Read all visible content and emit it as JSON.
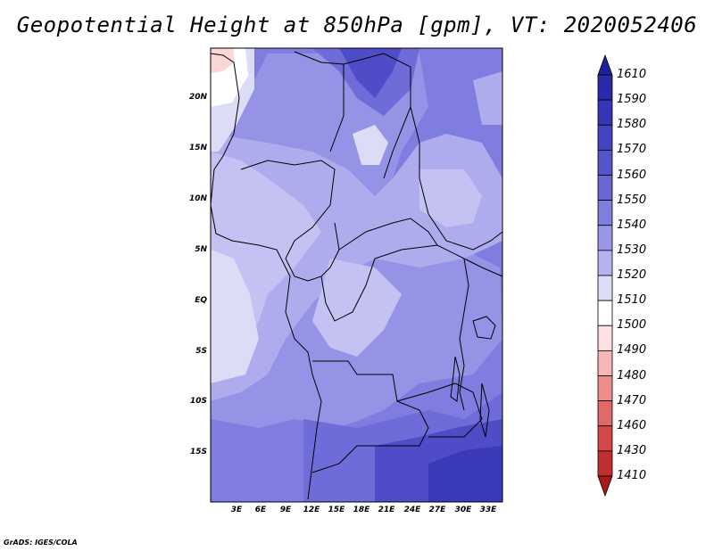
{
  "title": "Geopotential Height at 850hPa [gpm], VT: 2020052406",
  "footer": "GrADS: IGES/COLA",
  "lat_labels": [
    "20N",
    "15N",
    "10N",
    "5N",
    "EQ",
    "5S",
    "10S",
    "15S"
  ],
  "lon_labels": [
    "3E",
    "6E",
    "9E",
    "12E",
    "15E",
    "18E",
    "21E",
    "24E",
    "27E",
    "30E",
    "33E"
  ],
  "colorbar": {
    "levels": [
      "1610",
      "1590",
      "1580",
      "1570",
      "1560",
      "1550",
      "1540",
      "1530",
      "1520",
      "1510",
      "1500",
      "1490",
      "1480",
      "1470",
      "1460",
      "1430",
      "1410"
    ],
    "colors": [
      "#21209a",
      "#2b2aa8",
      "#3635b5",
      "#4443c2",
      "#5654cc",
      "#6967d6",
      "#7f7de0",
      "#9896e8",
      "#b4b3ef",
      "#dcdcf7",
      "#ffffff",
      "#fde0e0",
      "#f8b6b6",
      "#ef8d8d",
      "#e36868",
      "#d44848",
      "#c13030",
      "#a81b1b"
    ]
  },
  "map_colors": {
    "c1600": "#3a39b8",
    "c1590": "#4e4cc6",
    "c1570": "#6e6cd8",
    "c1560": "#7f7de0",
    "c1550": "#9593e6",
    "c1540": "#aeacec",
    "c1530": "#c3c2f2",
    "c1520": "#dcdcf7",
    "c1510": "#ffffff",
    "c1500": "#fbd7d7"
  }
}
